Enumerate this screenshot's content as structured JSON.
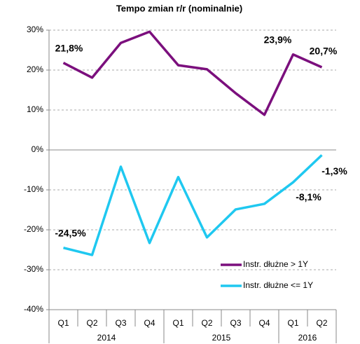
{
  "chart_data": {
    "type": "line",
    "title": "Tempo zmian r/r (nominalnie)",
    "categories": [
      "Q1",
      "Q2",
      "Q3",
      "Q4",
      "Q1",
      "Q2",
      "Q3",
      "Q4",
      "Q1",
      "Q2"
    ],
    "groups": [
      {
        "label": "2014",
        "count": 4
      },
      {
        "label": "2015",
        "count": 4
      },
      {
        "label": "2016",
        "count": 2
      }
    ],
    "series": [
      {
        "name": "Instr. dłużne > 1Y",
        "color": "#7b0f7d",
        "values": [
          21.8,
          18.1,
          26.8,
          29.6,
          21.2,
          20.2,
          14.2,
          8.8,
          23.9,
          20.7
        ],
        "value_labels": [
          "21,8%",
          null,
          null,
          null,
          null,
          null,
          null,
          null,
          "23,9%",
          "20,7%"
        ]
      },
      {
        "name": "Instr. dłużne <= 1Y",
        "color": "#1fc8f0",
        "values": [
          -24.5,
          -26.3,
          -4.2,
          -23.3,
          -6.8,
          -21.9,
          -14.9,
          -13.5,
          -8.1,
          -1.3
        ],
        "value_labels": [
          "-24,5%",
          null,
          null,
          null,
          null,
          null,
          null,
          null,
          "-8,1%",
          "-1,3%"
        ]
      }
    ],
    "ylim": [
      -40,
      30
    ],
    "yticks": [
      {
        "value": -40,
        "label": "-40%"
      },
      {
        "value": -30,
        "label": "-30%"
      },
      {
        "value": -20,
        "label": "-20%"
      },
      {
        "value": -10,
        "label": "-10%"
      },
      {
        "value": 0,
        "label": "0%"
      },
      {
        "value": 10,
        "label": "10%"
      },
      {
        "value": 20,
        "label": "20%"
      },
      {
        "value": 30,
        "label": "30%"
      }
    ],
    "grid": true,
    "legend": "lower right"
  }
}
